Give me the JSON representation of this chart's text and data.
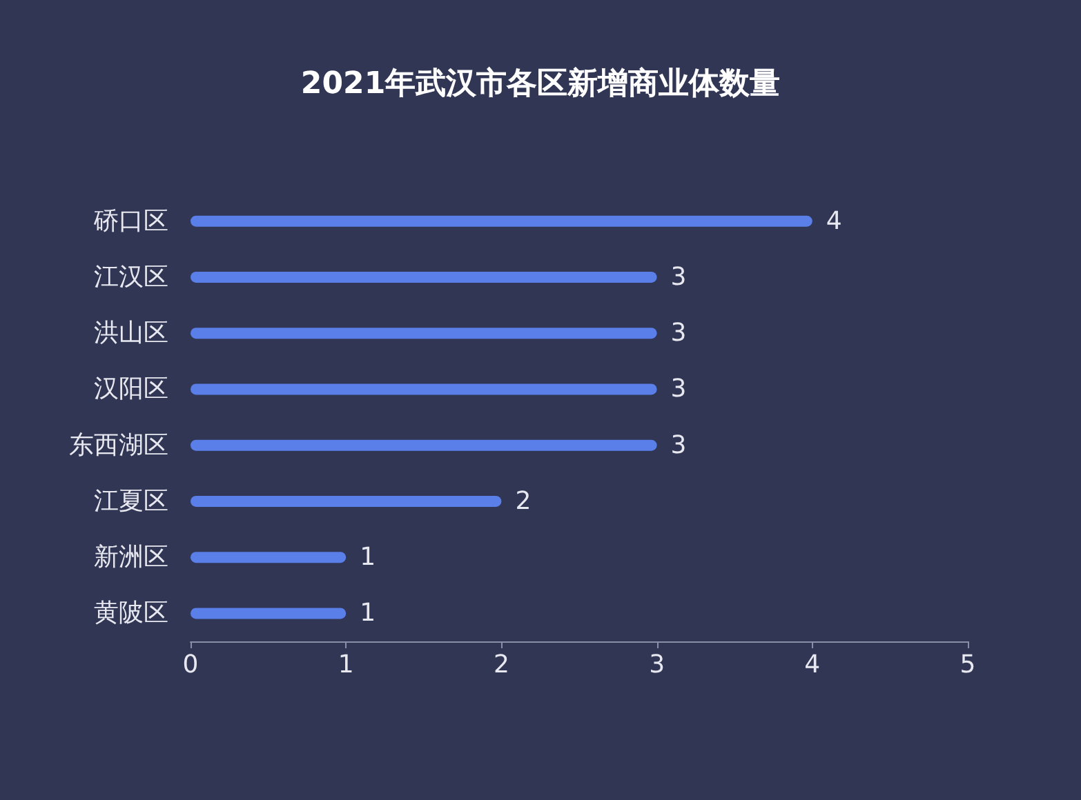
{
  "chart_data": {
    "type": "bar",
    "orientation": "horizontal",
    "title": "2021年武汉市各区新增商业体数量",
    "categories": [
      "硚口区",
      "江汉区",
      "洪山区",
      "汉阳区",
      "东西湖区",
      "江夏区",
      "新洲区",
      "黄陂区"
    ],
    "values": [
      4,
      3,
      3,
      3,
      3,
      2,
      1,
      1
    ],
    "color": "#5a7fe8",
    "xlim": [
      0,
      5
    ],
    "xticks": [
      0,
      1,
      2,
      3,
      4,
      5
    ],
    "grid": false,
    "data_labels": true
  }
}
